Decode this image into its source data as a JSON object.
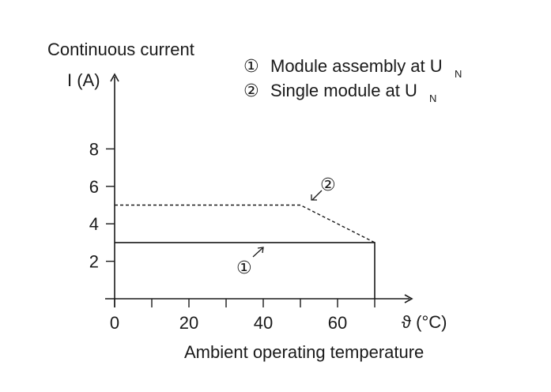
{
  "chart_data": {
    "type": "line",
    "ylabel_line1": "Continuous current",
    "ylabel_line2": "I (A)",
    "xlabel": "Ambient operating temperature",
    "x_unit": "ϑ (°C)",
    "x_ticks": [
      0,
      20,
      40,
      60
    ],
    "y_ticks": [
      2,
      4,
      6,
      8
    ],
    "xlim": [
      0,
      80
    ],
    "ylim": [
      0,
      10
    ],
    "series": [
      {
        "marker": "①",
        "name": "Module assembly at U",
        "subscript": "N",
        "style": "solid",
        "x": [
          0,
          70,
          70
        ],
        "y": [
          3,
          3,
          0
        ]
      },
      {
        "marker": "②",
        "name": "Single module at U",
        "subscript": "N",
        "style": "dashed",
        "x": [
          0,
          50,
          70
        ],
        "y": [
          5,
          5,
          3
        ]
      }
    ],
    "grid": false
  }
}
